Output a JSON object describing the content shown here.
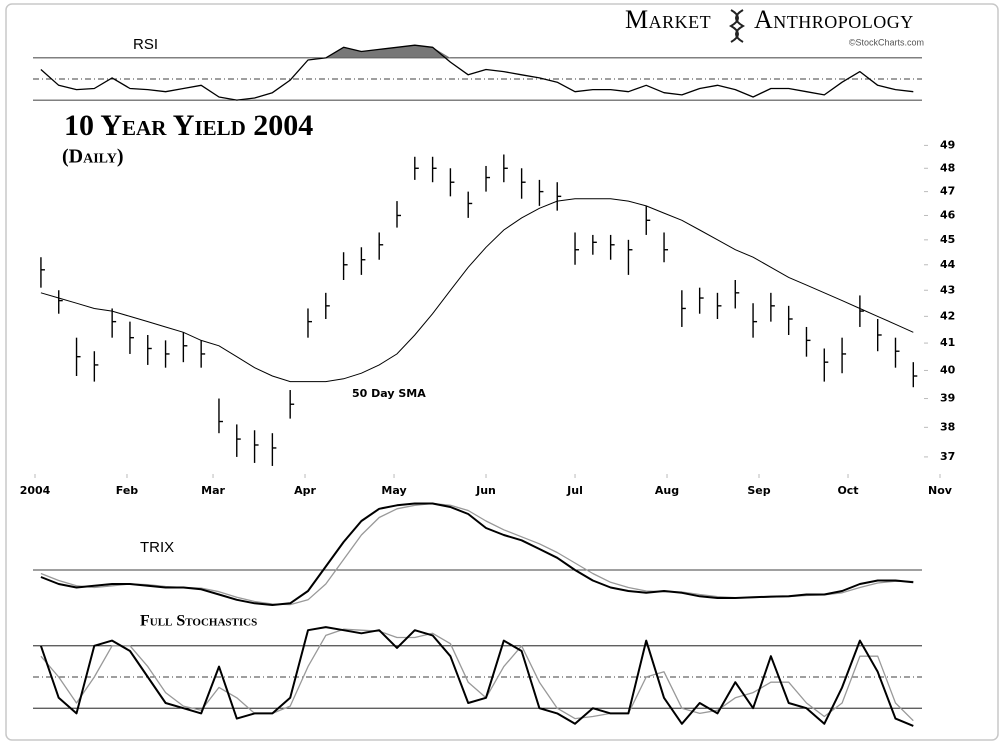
{
  "logo": {
    "left": "Market",
    "right": "Anthropology",
    "credit": "©StockCharts.com"
  },
  "chart_data": [
    {
      "type": "line",
      "title": "RSI",
      "x": [
        2,
        8,
        14,
        20,
        26,
        32,
        38,
        44,
        50,
        56,
        62,
        68,
        74,
        80,
        86,
        92,
        98,
        104,
        110,
        116,
        122,
        128,
        134,
        140,
        146,
        152,
        158,
        164,
        170,
        176,
        182,
        188,
        194,
        200,
        206,
        212,
        218,
        224,
        230,
        236,
        242,
        248,
        254,
        260,
        266,
        272,
        278,
        284,
        290,
        296
      ],
      "xlim": [
        0,
        305
      ],
      "ylim": [
        15,
        85
      ],
      "reference_lines": [
        {
          "value": 70,
          "dash": false
        },
        {
          "value": 50,
          "dash": true
        },
        {
          "value": 30,
          "dash": false
        }
      ],
      "fill_above_top": true,
      "fill_color": "#777777",
      "series": [
        {
          "color": "#000000",
          "values": [
            59,
            44,
            40,
            41,
            51,
            41,
            40,
            38,
            41,
            44,
            33,
            30,
            32,
            37,
            49,
            68,
            70,
            80,
            76,
            78,
            80,
            82,
            80,
            66,
            54,
            59,
            57,
            54,
            51,
            47,
            38,
            40,
            40,
            38,
            44,
            37,
            35,
            41,
            44,
            40,
            33,
            41,
            41,
            38,
            35,
            47,
            57,
            44,
            40,
            38
          ]
        }
      ]
    },
    {
      "type": "ohlc",
      "title": "10 Year Yield 2004",
      "subtitle": "(Daily)",
      "x": [
        2,
        8,
        14,
        20,
        26,
        32,
        38,
        44,
        50,
        56,
        62,
        68,
        74,
        80,
        86,
        92,
        98,
        104,
        110,
        116,
        122,
        128,
        134,
        140,
        146,
        152,
        158,
        164,
        170,
        176,
        182,
        188,
        194,
        200,
        206,
        212,
        218,
        224,
        230,
        236,
        242,
        248,
        254,
        260,
        266,
        272,
        278,
        284,
        290,
        296
      ],
      "xlim": [
        0,
        305
      ],
      "xticks": [
        {
          "value": 0,
          "label": "2004"
        },
        {
          "value": 31,
          "label": "Feb"
        },
        {
          "value": 60,
          "label": "Mar"
        },
        {
          "value": 91,
          "label": "Apr"
        },
        {
          "value": 121,
          "label": "May"
        },
        {
          "value": 152,
          "label": "Jun"
        },
        {
          "value": 182,
          "label": "Jul"
        },
        {
          "value": 213,
          "label": "Aug"
        },
        {
          "value": 244,
          "label": "Sep"
        },
        {
          "value": 274,
          "label": "Oct"
        },
        {
          "value": 305,
          "label": "Nov"
        }
      ],
      "ylim": [
        36.5,
        50
      ],
      "yticks": [
        37,
        38,
        39,
        40,
        41,
        42,
        43,
        44,
        45,
        46,
        47,
        48,
        49
      ],
      "log_scale": true,
      "color": "#000000",
      "high": [
        44.3,
        43.0,
        41.2,
        40.7,
        42.3,
        41.8,
        41.3,
        41.1,
        41.4,
        41.1,
        39.0,
        38.1,
        37.9,
        37.8,
        39.3,
        42.3,
        42.9,
        44.5,
        44.7,
        45.3,
        46.6,
        48.5,
        48.5,
        48.0,
        47.0,
        48.1,
        48.6,
        48.0,
        47.5,
        47.4,
        45.3,
        45.2,
        45.2,
        45.0,
        46.4,
        45.3,
        43.0,
        43.1,
        42.9,
        43.4,
        42.5,
        42.9,
        42.4,
        41.6,
        40.8,
        41.2,
        42.8,
        41.9,
        41.2,
        40.3
      ],
      "low": [
        43.1,
        42.1,
        39.8,
        39.6,
        41.2,
        40.6,
        40.2,
        40.1,
        40.3,
        40.1,
        37.8,
        37.0,
        36.8,
        36.7,
        38.3,
        41.2,
        41.9,
        43.4,
        43.6,
        44.2,
        45.5,
        47.5,
        47.4,
        46.8,
        45.9,
        47.0,
        47.4,
        46.7,
        46.4,
        46.2,
        44.0,
        44.4,
        44.2,
        43.6,
        45.2,
        44.1,
        41.6,
        42.1,
        41.9,
        42.3,
        41.2,
        41.8,
        41.3,
        40.5,
        39.6,
        39.9,
        41.6,
        40.7,
        40.1,
        39.4
      ],
      "close": [
        43.8,
        42.6,
        40.5,
        40.2,
        41.8,
        41.2,
        40.8,
        40.6,
        40.9,
        40.6,
        38.2,
        37.6,
        37.4,
        37.3,
        38.8,
        41.8,
        42.4,
        44.0,
        44.2,
        44.8,
        46.0,
        48.0,
        48.0,
        47.4,
        46.5,
        47.6,
        48.0,
        47.4,
        47.0,
        46.8,
        44.6,
        44.9,
        44.8,
        44.6,
        45.8,
        44.6,
        42.3,
        42.7,
        42.4,
        42.9,
        41.8,
        42.4,
        41.9,
        41.1,
        40.3,
        40.6,
        42.2,
        41.3,
        40.7,
        39.8
      ],
      "sma": {
        "label": "50 Day SMA",
        "color": "#000000",
        "values": [
          42.9,
          42.7,
          42.5,
          42.3,
          42.2,
          42.0,
          41.8,
          41.6,
          41.4,
          41.1,
          40.9,
          40.5,
          40.1,
          39.8,
          39.6,
          39.6,
          39.6,
          39.7,
          39.9,
          40.2,
          40.6,
          41.3,
          42.1,
          43.0,
          43.9,
          44.7,
          45.4,
          45.9,
          46.3,
          46.6,
          46.7,
          46.7,
          46.7,
          46.6,
          46.4,
          46.1,
          45.8,
          45.4,
          45.0,
          44.6,
          44.3,
          43.9,
          43.5,
          43.2,
          42.9,
          42.6,
          42.3,
          42.0,
          41.7,
          41.4
        ]
      }
    },
    {
      "type": "line",
      "title": "TRIX",
      "x": [
        2,
        8,
        14,
        20,
        26,
        32,
        38,
        44,
        50,
        56,
        62,
        68,
        74,
        80,
        86,
        92,
        98,
        104,
        110,
        116,
        122,
        128,
        134,
        140,
        146,
        152,
        158,
        164,
        170,
        176,
        182,
        188,
        194,
        200,
        206,
        212,
        218,
        224,
        230,
        236,
        242,
        248,
        254,
        260,
        266,
        272,
        278,
        284,
        290,
        296
      ],
      "xlim": [
        0,
        305
      ],
      "ylim": [
        -0.12,
        0.2
      ],
      "reference_lines": [
        {
          "value": 0,
          "dash": false
        }
      ],
      "series": [
        {
          "color": "#999999",
          "values": [
            -0.01,
            -0.03,
            -0.045,
            -0.05,
            -0.045,
            -0.04,
            -0.042,
            -0.047,
            -0.05,
            -0.052,
            -0.062,
            -0.078,
            -0.09,
            -0.097,
            -0.099,
            -0.085,
            -0.04,
            0.03,
            0.1,
            0.15,
            0.175,
            0.185,
            0.19,
            0.185,
            0.17,
            0.14,
            0.115,
            0.095,
            0.075,
            0.05,
            0.02,
            -0.01,
            -0.035,
            -0.05,
            -0.06,
            -0.062,
            -0.063,
            -0.07,
            -0.076,
            -0.079,
            -0.079,
            -0.077,
            -0.076,
            -0.073,
            -0.071,
            -0.065,
            -0.05,
            -0.037,
            -0.032,
            -0.033
          ]
        },
        {
          "color": "#000000",
          "values": [
            -0.02,
            -0.04,
            -0.05,
            -0.045,
            -0.04,
            -0.04,
            -0.045,
            -0.05,
            -0.05,
            -0.055,
            -0.07,
            -0.085,
            -0.095,
            -0.1,
            -0.095,
            -0.06,
            0.01,
            0.08,
            0.14,
            0.175,
            0.185,
            0.19,
            0.19,
            0.18,
            0.16,
            0.12,
            0.1,
            0.085,
            0.06,
            0.035,
            0.0,
            -0.03,
            -0.05,
            -0.06,
            -0.065,
            -0.06,
            -0.065,
            -0.075,
            -0.08,
            -0.08,
            -0.078,
            -0.076,
            -0.075,
            -0.07,
            -0.07,
            -0.06,
            -0.04,
            -0.03,
            -0.03,
            -0.035
          ]
        }
      ]
    },
    {
      "type": "line",
      "title": "Full Stochastics",
      "x": [
        2,
        8,
        14,
        20,
        26,
        32,
        38,
        44,
        50,
        56,
        62,
        68,
        74,
        80,
        86,
        92,
        98,
        104,
        110,
        116,
        122,
        128,
        134,
        140,
        146,
        152,
        158,
        164,
        170,
        176,
        182,
        188,
        194,
        200,
        206,
        212,
        218,
        224,
        230,
        236,
        242,
        248,
        254,
        260,
        266,
        272,
        278,
        284,
        290,
        296
      ],
      "xlim": [
        0,
        305
      ],
      "ylim": [
        0,
        100
      ],
      "reference_lines": [
        {
          "value": 80,
          "dash": false
        },
        {
          "value": 50,
          "dash": true
        },
        {
          "value": 20,
          "dash": false
        }
      ],
      "series": [
        {
          "color": "#999999",
          "values": [
            70,
            50,
            25,
            50,
            80,
            80,
            60,
            35,
            22,
            18,
            40,
            30,
            15,
            15,
            22,
            60,
            90,
            96,
            95,
            94,
            88,
            88,
            92,
            82,
            45,
            30,
            60,
            80,
            45,
            20,
            10,
            12,
            15,
            15,
            50,
            55,
            20,
            15,
            18,
            30,
            35,
            45,
            45,
            25,
            12,
            25,
            70,
            70,
            25,
            8
          ]
        },
        {
          "color": "#000000",
          "values": [
            80,
            30,
            15,
            80,
            85,
            75,
            50,
            25,
            20,
            15,
            60,
            10,
            15,
            15,
            30,
            95,
            98,
            95,
            92,
            95,
            78,
            95,
            90,
            70,
            25,
            30,
            85,
            75,
            20,
            15,
            5,
            20,
            15,
            15,
            85,
            30,
            5,
            25,
            15,
            45,
            20,
            70,
            25,
            20,
            5,
            40,
            85,
            55,
            10,
            3
          ]
        }
      ]
    }
  ]
}
